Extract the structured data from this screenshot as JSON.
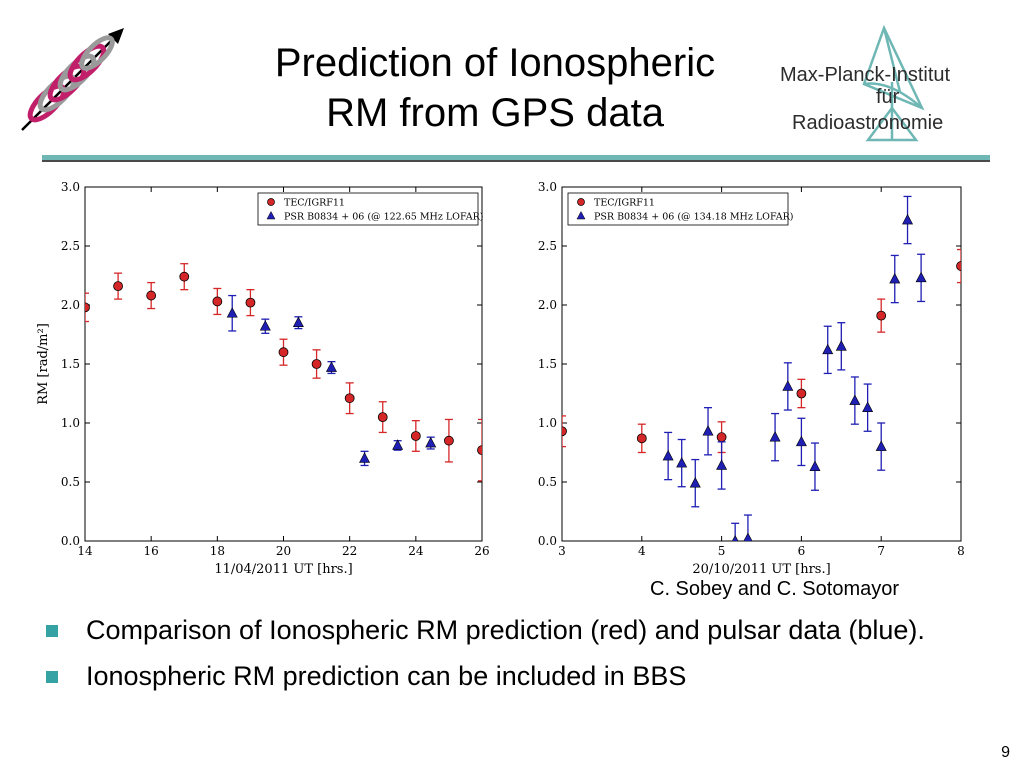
{
  "slide": {
    "title_line1": "Prediction of Ionospheric",
    "title_line2": "RM from GPS data",
    "logo_text_line1": "Max-Planck-Institut",
    "logo_text_line2": "für",
    "logo_text_line3": "Radioastronomie",
    "credit": "C. Sobey and C. Sotomayor",
    "bullets": [
      "Comparison of Ionospheric RM prediction (red) and pulsar data (blue).",
      "Ionospheric RM prediction can be included in BBS"
    ],
    "page_number": "9",
    "colors": {
      "accent": "#35a3a3",
      "rule": "#6fb7b4",
      "red": "#d62728",
      "blue": "#1f1fb4"
    },
    "icons": [
      "helix-logo-icon",
      "mpifr-telescope-icon"
    ]
  },
  "chart_data": [
    {
      "type": "scatter",
      "xlabel": "11/04/2011 UT [hrs.]",
      "ylabel": "RM [rad/m²]",
      "xlim": [
        14,
        26
      ],
      "ylim": [
        0.0,
        3.0
      ],
      "xticks": [
        "14",
        "16",
        "18",
        "20",
        "22",
        "24",
        "26"
      ],
      "yticks": [
        "0.0",
        "0.5",
        "1.0",
        "1.5",
        "2.0",
        "2.5",
        "3.0"
      ],
      "legend_position": "top-right",
      "series": [
        {
          "name": "TEC/IGRF11",
          "marker": "circle",
          "color": "#d62728",
          "points": [
            {
              "x": 14,
              "y": 1.98,
              "err": 0.12
            },
            {
              "x": 15,
              "y": 2.16,
              "err": 0.11
            },
            {
              "x": 16,
              "y": 2.08,
              "err": 0.11
            },
            {
              "x": 17,
              "y": 2.24,
              "err": 0.11
            },
            {
              "x": 18,
              "y": 2.03,
              "err": 0.11
            },
            {
              "x": 19,
              "y": 2.02,
              "err": 0.11
            },
            {
              "x": 20,
              "y": 1.6,
              "err": 0.11
            },
            {
              "x": 21,
              "y": 1.5,
              "err": 0.12
            },
            {
              "x": 22,
              "y": 1.21,
              "err": 0.13
            },
            {
              "x": 23,
              "y": 1.05,
              "err": 0.13
            },
            {
              "x": 24,
              "y": 0.89,
              "err": 0.13
            },
            {
              "x": 25,
              "y": 0.85,
              "err": 0.18
            },
            {
              "x": 26,
              "y": 0.77,
              "err": 0.26
            }
          ]
        },
        {
          "name": "PSR B0834 + 06 (@ 122.65 MHz LOFAR)",
          "marker": "triangle",
          "color": "#1f1fb4",
          "points": [
            {
              "x": 18.45,
              "y": 1.93,
              "err": 0.15
            },
            {
              "x": 19.45,
              "y": 1.82,
              "err": 0.06
            },
            {
              "x": 20.45,
              "y": 1.85,
              "err": 0.05
            },
            {
              "x": 21.45,
              "y": 1.47,
              "err": 0.05
            },
            {
              "x": 22.45,
              "y": 0.7,
              "err": 0.06
            },
            {
              "x": 23.45,
              "y": 0.81,
              "err": 0.04
            },
            {
              "x": 24.45,
              "y": 0.83,
              "err": 0.05
            }
          ]
        }
      ]
    },
    {
      "type": "scatter",
      "xlabel": "20/10/2011 UT [hrs.]",
      "ylabel": "",
      "xlim": [
        3,
        8
      ],
      "ylim": [
        0.0,
        3.0
      ],
      "xticks": [
        "3",
        "4",
        "5",
        "6",
        "7",
        "8"
      ],
      "yticks": [
        "0.0",
        "0.5",
        "1.0",
        "1.5",
        "2.0",
        "2.5",
        "3.0"
      ],
      "legend_position": "top-left",
      "series": [
        {
          "name": "TEC/IGRF11",
          "marker": "circle",
          "color": "#d62728",
          "points": [
            {
              "x": 3,
              "y": 0.93,
              "err": 0.13
            },
            {
              "x": 4,
              "y": 0.87,
              "err": 0.12
            },
            {
              "x": 5,
              "y": 0.88,
              "err": 0.13
            },
            {
              "x": 6,
              "y": 1.25,
              "err": 0.12
            },
            {
              "x": 7,
              "y": 1.91,
              "err": 0.14
            },
            {
              "x": 8,
              "y": 2.33,
              "err": 0.14
            }
          ]
        },
        {
          "name": "PSR B0834 + 06 (@ 134.18 MHz LOFAR)",
          "marker": "triangle",
          "color": "#1f1fb4",
          "points": [
            {
              "x": 4.33,
              "y": 0.72,
              "err": 0.2
            },
            {
              "x": 4.5,
              "y": 0.66,
              "err": 0.2
            },
            {
              "x": 4.67,
              "y": 0.49,
              "err": 0.2
            },
            {
              "x": 4.83,
              "y": 0.93,
              "err": 0.2
            },
            {
              "x": 5.0,
              "y": 0.64,
              "err": 0.2
            },
            {
              "x": 5.17,
              "y": 0.0,
              "err": 0.15
            },
            {
              "x": 5.33,
              "y": 0.02,
              "err": 0.2
            },
            {
              "x": 5.67,
              "y": 0.88,
              "err": 0.2
            },
            {
              "x": 5.83,
              "y": 1.31,
              "err": 0.2
            },
            {
              "x": 6.0,
              "y": 0.84,
              "err": 0.2
            },
            {
              "x": 6.17,
              "y": 0.63,
              "err": 0.2
            },
            {
              "x": 6.33,
              "y": 1.62,
              "err": 0.2
            },
            {
              "x": 6.5,
              "y": 1.65,
              "err": 0.2
            },
            {
              "x": 6.67,
              "y": 1.19,
              "err": 0.2
            },
            {
              "x": 6.83,
              "y": 1.13,
              "err": 0.2
            },
            {
              "x": 7.0,
              "y": 0.8,
              "err": 0.2
            },
            {
              "x": 7.17,
              "y": 2.22,
              "err": 0.2
            },
            {
              "x": 7.33,
              "y": 2.72,
              "err": 0.2
            },
            {
              "x": 7.5,
              "y": 2.23,
              "err": 0.2
            }
          ]
        }
      ]
    }
  ]
}
